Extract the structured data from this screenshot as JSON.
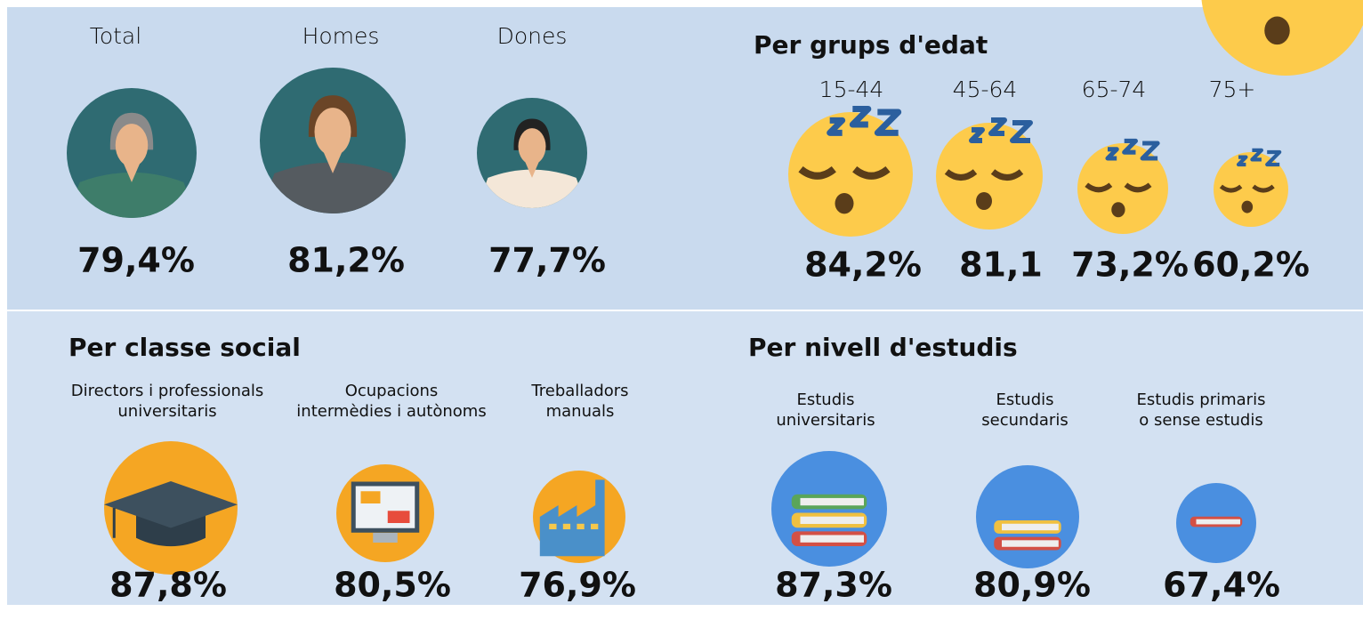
{
  "overall": {
    "items": [
      {
        "label": "Total",
        "value": "79,4%"
      },
      {
        "label": "Homes",
        "value": "81,2%"
      },
      {
        "label": "Dones",
        "value": "77,7%"
      }
    ]
  },
  "age_groups": {
    "title": "Per grups d'edat",
    "items": [
      {
        "label": "15-44",
        "value": "84,2%"
      },
      {
        "label": "45-64",
        "value": "81,1"
      },
      {
        "label": "65-74",
        "value": "73,2%"
      },
      {
        "label": "75+",
        "value": "60,2%"
      }
    ]
  },
  "social_class": {
    "title": "Per classe social",
    "items": [
      {
        "label": [
          "Directors i professionals",
          "universitaris"
        ],
        "value": "87,8%"
      },
      {
        "label": [
          "Ocupacions",
          "intermèdies i autònoms"
        ],
        "value": "80,5%"
      },
      {
        "label": [
          "Treballadors",
          "manuals"
        ],
        "value": "76,9%"
      }
    ]
  },
  "education": {
    "title": "Per nivell d'estudis",
    "items": [
      {
        "label": [
          "Estudis",
          "universitaris"
        ],
        "value": "87,3%"
      },
      {
        "label": [
          "Estudis",
          "secundaris"
        ],
        "value": "80,9%"
      },
      {
        "label": [
          "Estudis primaris",
          "o sense estudis"
        ],
        "value": "67,4%"
      }
    ]
  }
}
